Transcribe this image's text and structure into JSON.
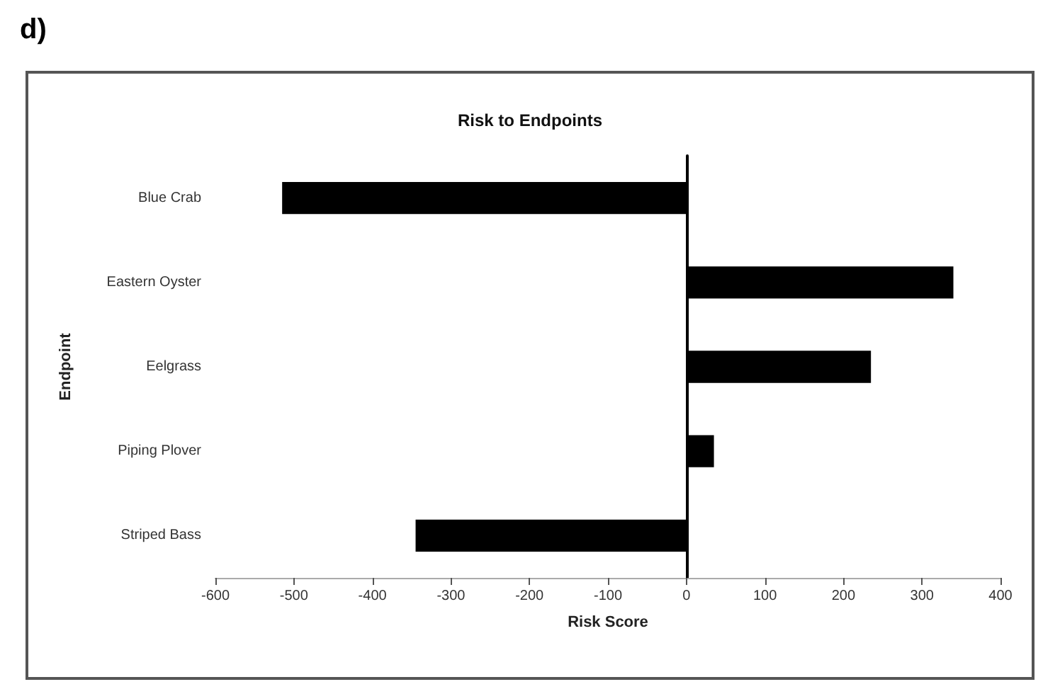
{
  "chart_data": {
    "type": "bar",
    "orientation": "horizontal",
    "title": "Risk to Endpoints",
    "xlabel": "Risk Score",
    "ylabel": "Endpoint",
    "annotations": [
      "d)"
    ],
    "categories": [
      "Blue Crab",
      "Eastern Oyster",
      "Eelgrass",
      "Piping Plover",
      "Striped Bass"
    ],
    "values": [
      -515,
      340,
      235,
      35,
      -345
    ],
    "color": "#000000",
    "xlim": [
      -600,
      400
    ],
    "xticks": [
      -600,
      -500,
      -400,
      -300,
      -200,
      -100,
      0,
      100,
      200,
      300,
      400
    ]
  }
}
